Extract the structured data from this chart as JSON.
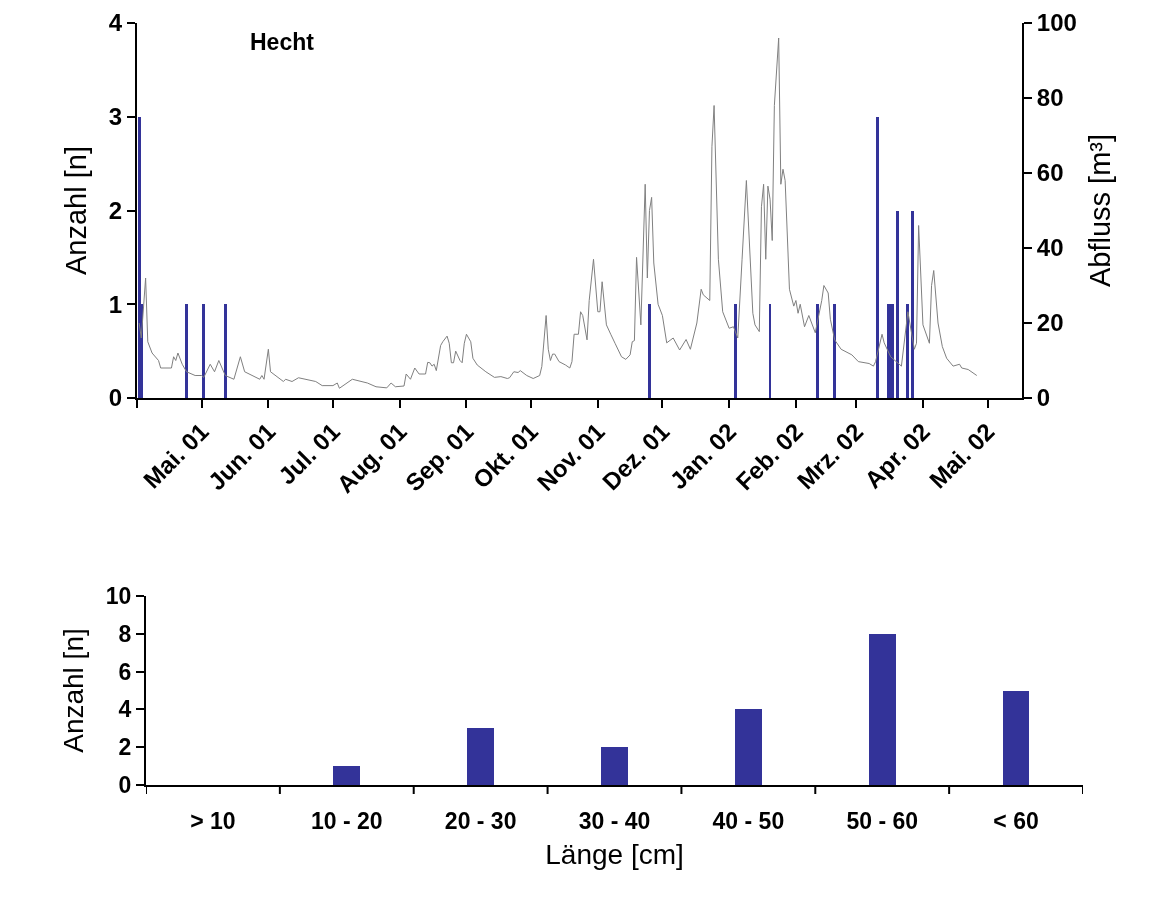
{
  "chart_data": [
    {
      "type": "bar",
      "title": "Hecht",
      "ylabel": "Anzahl [n]",
      "y2label": "Abfluss [m³]",
      "xlim": [
        "2001-04-01",
        "2002-05-17"
      ],
      "xticks": [
        {
          "value": "2001-04-01",
          "label": null
        },
        {
          "value": "2001-05-01",
          "label": "Mai. 01"
        },
        {
          "value": "2001-06-01",
          "label": "Jun. 01"
        },
        {
          "value": "2001-07-01",
          "label": "Jul. 01"
        },
        {
          "value": "2001-08-01",
          "label": "Aug. 01"
        },
        {
          "value": "2001-09-01",
          "label": "Sep. 01"
        },
        {
          "value": "2001-10-01",
          "label": "Okt. 01"
        },
        {
          "value": "2001-11-01",
          "label": "Nov. 01"
        },
        {
          "value": "2001-12-01",
          "label": "Dez. 01"
        },
        {
          "value": "2002-01-01",
          "label": "Jan. 02"
        },
        {
          "value": "2002-02-01",
          "label": "Feb. 02"
        },
        {
          "value": "2002-03-01",
          "label": "Mrz. 02"
        },
        {
          "value": "2002-04-01",
          "label": "Apr. 02"
        },
        {
          "value": "2002-05-01",
          "label": "Mai. 02"
        }
      ],
      "ylim": [
        0,
        4
      ],
      "yticks": [
        0,
        1,
        2,
        3,
        4
      ],
      "y2lim": [
        0,
        100
      ],
      "y2ticks": [
        0,
        20,
        40,
        60,
        80,
        100
      ],
      "series": [
        {
          "type": "bar",
          "color": "#333399",
          "x": [
            "2001-04-02",
            "2001-04-03",
            "2001-04-24",
            "2001-05-02",
            "2001-05-12",
            "2001-11-25",
            "2002-01-04",
            "2002-01-20",
            "2002-02-11",
            "2002-02-19",
            "2002-03-11",
            "2002-03-16",
            "2002-03-17",
            "2002-03-18",
            "2002-03-20",
            "2002-03-25",
            "2002-03-27"
          ],
          "values": [
            3,
            1,
            1,
            1,
            1,
            1,
            1,
            1,
            1,
            1,
            3,
            1,
            1,
            1,
            2,
            1,
            2
          ]
        },
        {
          "type": "line",
          "axis": "y2",
          "color": "#808080",
          "x": [
            "2001-04-02",
            "2001-04-03",
            "2001-04-05",
            "2001-04-06",
            "2001-04-08",
            "2001-04-11",
            "2001-04-12",
            "2001-04-17",
            "2001-04-18",
            "2001-04-19",
            "2001-04-20",
            "2001-04-22",
            "2001-04-24",
            "2001-04-28",
            "2001-05-01",
            "2001-05-02",
            "2001-05-05",
            "2001-05-07",
            "2001-05-09",
            "2001-05-12",
            "2001-05-16",
            "2001-05-19",
            "2001-05-21",
            "2001-05-28",
            "2001-05-29",
            "2001-05-30",
            "2001-06-01",
            "2001-06-02",
            "2001-06-08",
            "2001-06-09",
            "2001-06-12",
            "2001-06-15",
            "2001-06-23",
            "2001-06-26",
            "2001-07-01",
            "2001-07-03",
            "2001-07-04",
            "2001-07-10",
            "2001-07-17",
            "2001-07-21",
            "2001-07-26",
            "2001-07-28",
            "2001-07-30",
            "2001-08-03",
            "2001-08-04",
            "2001-08-06",
            "2001-08-08",
            "2001-08-10",
            "2001-08-13",
            "2001-08-14",
            "2001-08-15",
            "2001-08-16",
            "2001-08-17",
            "2001-08-18",
            "2001-08-20",
            "2001-08-21",
            "2001-08-23",
            "2001-08-24",
            "2001-08-25",
            "2001-08-26",
            "2001-08-27",
            "2001-08-29",
            "2001-08-30",
            "2001-08-31",
            "2001-09-01",
            "2001-09-03",
            "2001-09-04",
            "2001-09-06",
            "2001-09-10",
            "2001-09-14",
            "2001-09-17",
            "2001-09-20",
            "2001-09-21",
            "2001-09-23",
            "2001-09-25",
            "2001-09-26",
            "2001-09-29",
            "2001-10-02",
            "2001-10-05",
            "2001-10-06",
            "2001-10-08",
            "2001-10-09",
            "2001-10-10",
            "2001-10-11",
            "2001-10-12",
            "2001-10-14",
            "2001-10-17",
            "2001-10-19",
            "2001-10-20",
            "2001-10-21",
            "2001-10-23",
            "2001-10-24",
            "2001-10-25",
            "2001-10-27",
            "2001-10-28",
            "2001-10-30",
            "2001-11-01",
            "2001-11-02",
            "2001-11-03",
            "2001-11-05",
            "2001-11-07",
            "2001-11-09",
            "2001-11-12",
            "2001-11-14",
            "2001-11-16",
            "2001-11-17",
            "2001-11-18",
            "2001-11-19",
            "2001-11-21",
            "2001-11-23",
            "2001-11-24",
            "2001-11-25",
            "2001-11-26",
            "2001-11-27",
            "2001-11-29",
            "2001-12-01",
            "2001-12-03",
            "2001-12-06",
            "2001-12-09",
            "2001-12-12",
            "2001-12-14",
            "2001-12-17",
            "2001-12-19",
            "2001-12-20",
            "2001-12-23",
            "2001-12-24",
            "2001-12-25",
            "2001-12-27",
            "2001-12-29",
            "2002-01-01",
            "2002-01-03",
            "2002-01-05",
            "2002-01-07",
            "2002-01-09",
            "2002-01-12",
            "2002-01-13",
            "2002-01-15",
            "2002-01-16",
            "2002-01-17",
            "2002-01-18",
            "2002-01-19",
            "2002-01-20",
            "2002-01-21",
            "2002-01-22",
            "2002-01-24",
            "2002-01-25",
            "2002-01-26",
            "2002-01-27",
            "2002-01-29",
            "2002-01-31",
            "2002-02-01",
            "2002-02-02",
            "2002-02-03",
            "2002-02-05",
            "2002-02-07",
            "2002-02-10",
            "2002-02-13",
            "2002-02-14",
            "2002-02-16",
            "2002-02-17",
            "2002-02-19",
            "2002-02-22",
            "2002-02-27",
            "2002-03-02",
            "2002-03-07",
            "2002-03-09",
            "2002-03-10",
            "2002-03-13",
            "2002-03-14",
            "2002-03-17",
            "2002-03-22",
            "2002-03-25",
            "2002-03-28",
            "2002-03-29",
            "2002-03-30",
            "2002-04-01",
            "2002-04-04",
            "2002-04-05",
            "2002-04-06",
            "2002-04-08",
            "2002-04-10",
            "2002-04-12",
            "2002-04-15",
            "2002-04-18",
            "2002-04-19",
            "2002-04-22",
            "2002-04-26"
          ],
          "values": [
            20,
            16,
            32,
            15,
            12,
            10,
            8,
            8,
            11,
            10,
            12,
            9,
            7,
            6,
            6,
            5.5,
            9,
            7,
            10,
            6,
            5,
            11,
            7,
            5,
            6,
            5,
            13,
            7,
            4.4,
            5,
            4.4,
            5.4,
            4.4,
            3.3,
            3.3,
            4,
            2.6,
            5,
            4,
            3,
            2.7,
            4,
            3,
            3.2,
            6.4,
            5,
            8,
            6.4,
            6.4,
            9.5,
            9.4,
            8.5,
            9,
            7.3,
            14,
            15,
            16.5,
            14.6,
            9.4,
            9.4,
            12.5,
            10,
            9.4,
            14.6,
            17,
            15,
            10.6,
            8.8,
            7,
            5.5,
            5.7,
            5.2,
            5.4,
            7,
            6.8,
            7.3,
            6,
            5.2,
            6,
            8.4,
            22,
            13,
            10,
            11.7,
            11.7,
            9.7,
            8.8,
            8,
            9.7,
            17,
            17,
            23,
            22,
            15.5,
            26,
            37,
            23,
            23,
            31,
            19.5,
            17,
            14.6,
            11,
            10.3,
            11.5,
            15,
            15.3,
            37.5,
            19.5,
            57,
            32,
            50,
            53.5,
            36,
            25,
            22,
            14.7,
            16,
            12.8,
            15.6,
            13,
            20,
            29,
            27.5,
            26,
            67,
            78,
            37,
            23,
            18.6,
            19,
            16,
            37,
            58,
            22.6,
            19.5,
            17.7,
            51,
            57,
            37,
            56.5,
            53,
            42,
            78,
            96,
            57,
            61,
            58,
            29,
            24.5,
            26,
            22.6,
            25,
            19,
            22,
            17.4,
            26,
            30,
            28,
            21,
            15.5,
            13,
            11.5,
            9.7,
            9.2,
            8.5,
            9.7,
            17,
            14.7,
            11,
            8.5,
            23,
            13,
            14.6,
            46,
            19.5,
            14.6,
            30,
            34,
            20,
            13.7,
            10.6,
            8.5,
            9,
            8,
            7.6,
            6
          ]
        }
      ]
    },
    {
      "type": "bar",
      "categories": [
        "> 10",
        "10 - 20",
        "20 - 30",
        "30 - 40",
        "40 - 50",
        "50 - 60",
        "< 60"
      ],
      "values": [
        0,
        1,
        3,
        2,
        4,
        8,
        5
      ],
      "color": "#333399",
      "xlabel": "Länge [cm]",
      "ylabel": "Anzahl [n]",
      "ylim": [
        0,
        10
      ],
      "yticks": [
        0,
        2,
        4,
        6,
        8,
        10
      ]
    }
  ]
}
